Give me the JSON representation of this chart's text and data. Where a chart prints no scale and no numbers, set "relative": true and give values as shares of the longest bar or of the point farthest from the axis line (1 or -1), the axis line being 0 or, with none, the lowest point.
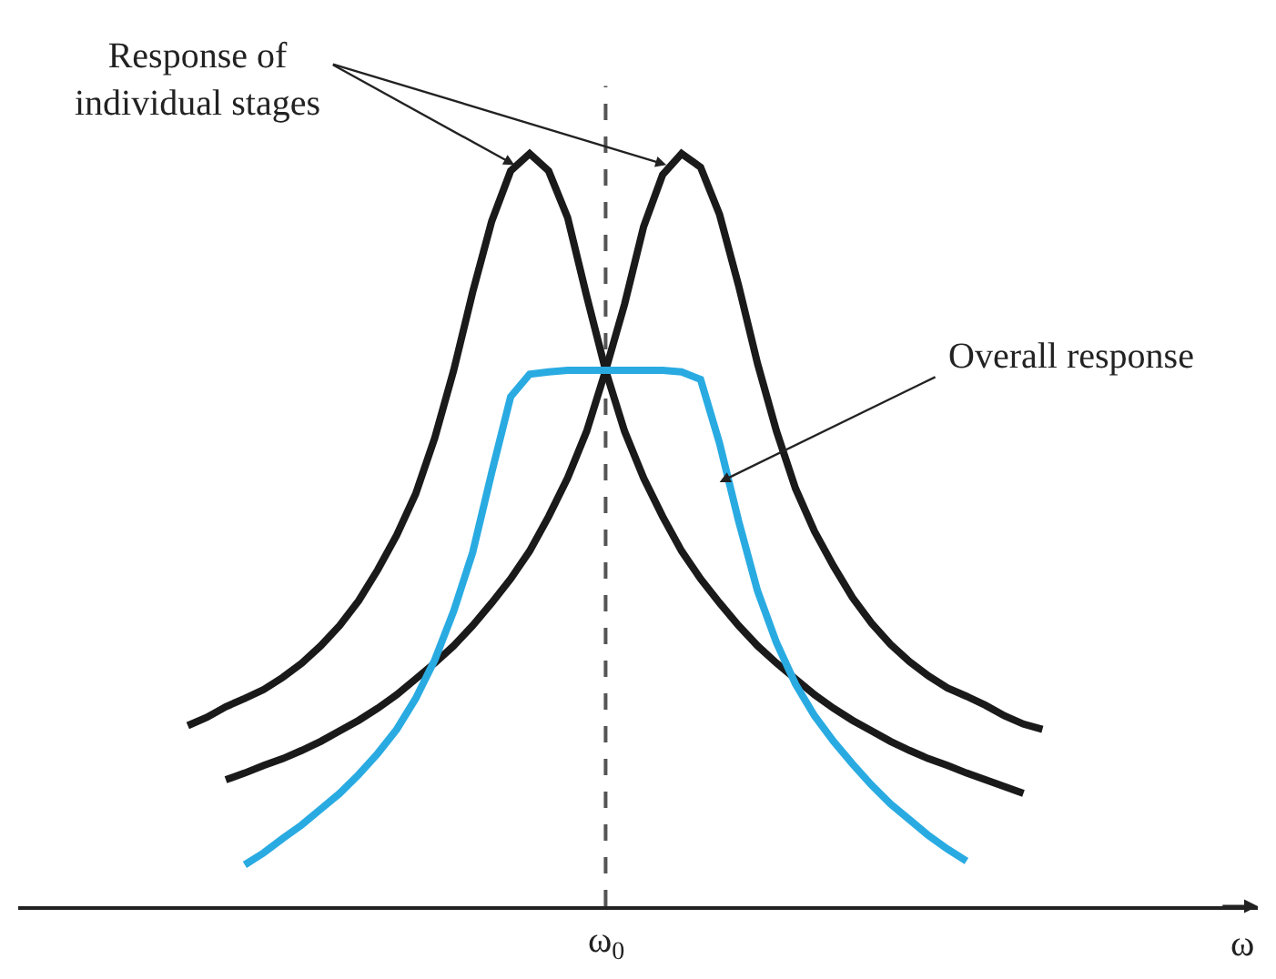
{
  "chart_data": {
    "type": "line",
    "relative": true,
    "xlabel": "ω",
    "marker": "none",
    "line_style": "solid",
    "categories": [
      null,
      null,
      null,
      null,
      null,
      null,
      null,
      null,
      null,
      null,
      null,
      null,
      null,
      null,
      null,
      null,
      null,
      null,
      null,
      null,
      null,
      null,
      null,
      null,
      null,
      null,
      null,
      null,
      null,
      null,
      null,
      null,
      null,
      null,
      null,
      null,
      null,
      null,
      null,
      null,
      null,
      null,
      null,
      null,
      null,
      null,
      null
    ],
    "annotations": [
      "Response of\nindividual stages",
      "Overall response",
      "ω$_{0}$"
    ],
    "series": [
      {
        "color": "#1a1a1a",
        "values": [
          0.24,
          0.251,
          0.265,
          0.276,
          0.288,
          0.304,
          0.323,
          0.346,
          0.373,
          0.406,
          0.447,
          0.493,
          0.548,
          0.622,
          0.712,
          0.816,
          0.91,
          0.977,
          1,
          0.977,
          0.915,
          0.811,
          0.712,
          0.631,
          0.569,
          0.518,
          0.472,
          0.435,
          0.403,
          0.373,
          0.346,
          0.323,
          0.302,
          0.281,
          0.263,
          0.247,
          0.233,
          0.219,
          0.207,
          0.196,
          0.187,
          0.177,
          0.168,
          0.159,
          0.15,
          null,
          null
        ]
      },
      {
        "color": "#1a1a1a",
        "values": [
          null,
          null,
          0.168,
          0.177,
          0.187,
          0.196,
          0.207,
          0.219,
          0.233,
          0.247,
          0.263,
          0.281,
          0.302,
          0.323,
          0.346,
          0.373,
          0.403,
          0.435,
          0.472,
          0.518,
          0.569,
          0.631,
          0.712,
          0.8,
          0.903,
          0.972,
          1,
          0.982,
          0.919,
          0.825,
          0.721,
          0.631,
          0.555,
          0.498,
          0.452,
          0.41,
          0.376,
          0.348,
          0.325,
          0.306,
          0.29,
          0.279,
          0.267,
          0.253,
          0.242,
          0.235,
          null
        ]
      },
      {
        "color": "#29abe2",
        "values": [
          null,
          null,
          null,
          0.055,
          0.071,
          0.09,
          0.108,
          0.129,
          0.15,
          0.175,
          0.203,
          0.235,
          0.276,
          0.327,
          0.392,
          0.47,
          0.576,
          0.677,
          0.707,
          0.71,
          0.712,
          0.712,
          0.712,
          0.712,
          0.712,
          0.712,
          0.71,
          0.7,
          0.615,
          0.512,
          0.419,
          0.35,
          0.295,
          0.253,
          0.219,
          0.189,
          0.161,
          0.136,
          0.115,
          0.094,
          0.076,
          0.06,
          null,
          null,
          null,
          null,
          null
        ]
      }
    ]
  }
}
